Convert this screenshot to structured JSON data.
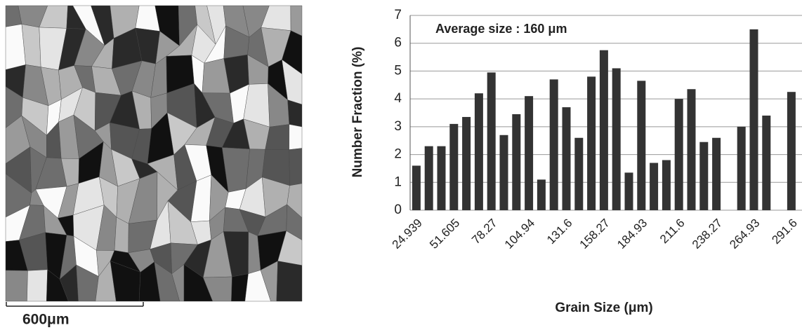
{
  "scale_bar": {
    "label": "600μm"
  },
  "chart_data": {
    "type": "bar",
    "ylabel": "Number Fraction (%)",
    "xlabel": "Grain Size (μm)",
    "annotation": "Average size : 160 μm",
    "categories": [
      "24.939",
      null,
      null,
      "51.605",
      null,
      null,
      "78.27",
      null,
      null,
      "104.94",
      null,
      null,
      "131.6",
      null,
      null,
      "158.27",
      null,
      null,
      "184.93",
      null,
      null,
      "211.6",
      null,
      null,
      "238.27",
      null,
      null,
      "264.93",
      null,
      null,
      "291.6"
    ],
    "values": [
      1.6,
      2.3,
      2.3,
      3.1,
      3.35,
      4.2,
      4.95,
      2.7,
      3.45,
      4.1,
      1.1,
      4.7,
      3.7,
      2.6,
      4.8,
      5.75,
      5.1,
      1.35,
      4.65,
      1.7,
      1.8,
      4.0,
      4.35,
      2.45,
      2.6,
      0,
      3.0,
      6.5,
      3.4,
      0,
      4.25
    ],
    "color": "#333333",
    "ylim": [
      0,
      7
    ],
    "yticks": [
      0,
      1,
      2,
      3,
      4,
      5,
      6,
      7
    ],
    "grid": true
  }
}
